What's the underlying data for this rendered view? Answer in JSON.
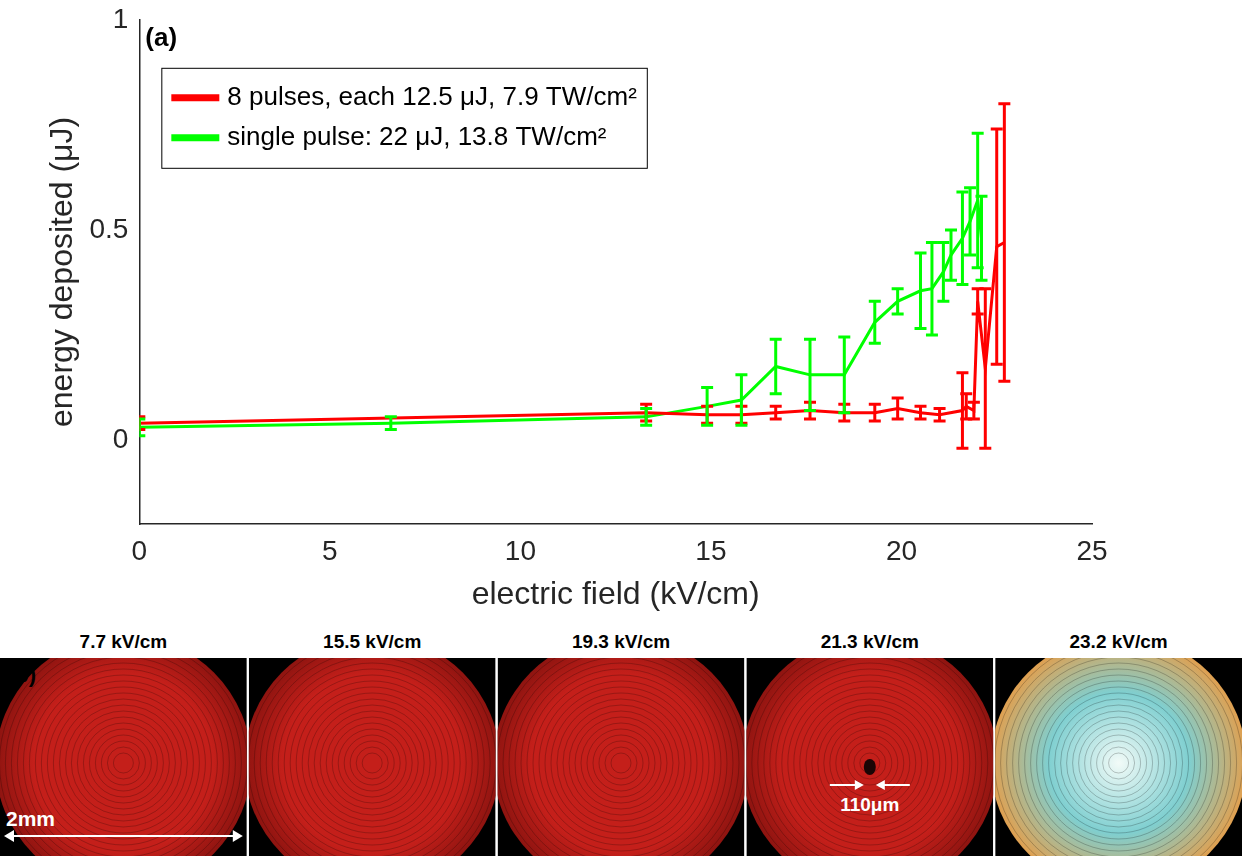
{
  "chart_data": {
    "type": "line",
    "panel_label": "(a)",
    "x_label": "electric field (kV/cm)",
    "y_label": "energy deposited (μJ)",
    "xlim": [
      0,
      25
    ],
    "xticks": [
      0,
      5,
      10,
      15,
      20,
      25
    ],
    "ylim": [
      -0.2,
      1
    ],
    "yticks": [
      0,
      0.5,
      1
    ],
    "grid": false,
    "legend": "upper left",
    "series": [
      {
        "name": "8 pulses, each 12.5 μJ, 7.9 TW/cm²",
        "color": "#ff0000",
        "x": [
          0,
          13.3,
          14.9,
          15.8,
          16.7,
          17.6,
          18.5,
          19.3,
          19.9,
          20.5,
          21.0,
          21.6,
          21.7,
          21.9,
          22.0,
          22.2,
          22.5,
          22.7
        ],
        "values": [
          0.04,
          0.065,
          0.06,
          0.06,
          0.065,
          0.07,
          0.065,
          0.065,
          0.075,
          0.065,
          0.06,
          0.07,
          0.08,
          0.07,
          0.33,
          0.17,
          0.46,
          0.47
        ],
        "errors": [
          0.015,
          0.02,
          0.02,
          0.02,
          0.015,
          0.02,
          0.02,
          0.02,
          0.025,
          0.015,
          0.015,
          0.09,
          0.03,
          0.02,
          0.03,
          0.19,
          0.28,
          0.33
        ]
      },
      {
        "name": "single pulse: 22 μJ, 13.8 TW/cm²",
        "color": "#00ff00",
        "x": [
          0,
          6.6,
          13.3,
          14.9,
          15.8,
          16.7,
          17.6,
          18.5,
          19.3,
          19.9,
          20.5,
          20.8,
          21.1,
          21.3,
          21.6,
          21.8,
          22.0,
          22.1
        ],
        "values": [
          0.03,
          0.04,
          0.055,
          0.08,
          0.095,
          0.175,
          0.155,
          0.155,
          0.28,
          0.33,
          0.355,
          0.36,
          0.4,
          0.44,
          0.48,
          0.52,
          0.57,
          0.48
        ],
        "errors": [
          0.02,
          0.015,
          0.02,
          0.045,
          0.06,
          0.065,
          0.085,
          0.09,
          0.05,
          0.03,
          0.09,
          0.11,
          0.07,
          0.06,
          0.11,
          0.08,
          0.16,
          0.1
        ]
      }
    ]
  },
  "photos": {
    "panel_label": "(b)",
    "frames": [
      {
        "title": "7.7 kV/cm",
        "color": "#c41f1a"
      },
      {
        "title": "15.5 kV/cm",
        "color": "#c41f1a"
      },
      {
        "title": "19.3 kV/cm",
        "color": "#c41f1a"
      },
      {
        "title": "21.3 kV/cm",
        "color": "#c41f1a"
      },
      {
        "title": "23.2 kV/cm",
        "color": "#7fcfd0"
      }
    ],
    "scale_bar": "2mm",
    "spot_size": "110μm"
  }
}
